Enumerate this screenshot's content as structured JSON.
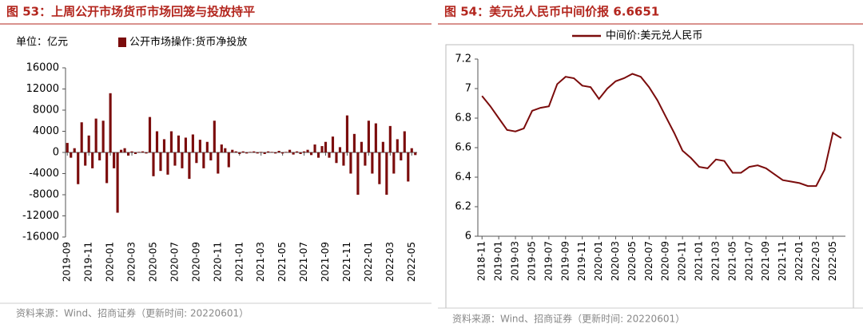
{
  "chart_data": [
    {
      "type": "bar",
      "title": "图 53：上周公开市场货币市场回笼与投放持平",
      "unit_label": "单位：亿元",
      "source": "资料来源：Wind、招商证券（更新时间: 20220601）",
      "categories": [
        "2019-09",
        null,
        null,
        null,
        null,
        null,
        "2019-11",
        null,
        null,
        null,
        null,
        null,
        "2020-01",
        null,
        null,
        null,
        null,
        null,
        "2020-03",
        null,
        null,
        null,
        null,
        null,
        "2020-05",
        null,
        null,
        null,
        null,
        null,
        "2020-07",
        null,
        null,
        null,
        null,
        null,
        "2020-09",
        null,
        null,
        null,
        null,
        null,
        "2020-11",
        null,
        null,
        null,
        null,
        null,
        "2021-01",
        null,
        null,
        null,
        null,
        null,
        "2021-03",
        null,
        null,
        null,
        null,
        null,
        "2021-05",
        null,
        null,
        null,
        null,
        null,
        "2021-07",
        null,
        null,
        null,
        null,
        null,
        "2021-09",
        null,
        null,
        null,
        null,
        null,
        "2021-11",
        null,
        null,
        null,
        null,
        null,
        "2022-01",
        null,
        null,
        null,
        null,
        null,
        "2022-03",
        null,
        null,
        null,
        null,
        null,
        "2022-05",
        null
      ],
      "series": [
        {
          "name": "公开市场操作:货币净投放",
          "color": "#7b0c0c",
          "values": [
            1800,
            -1000,
            800,
            -6000,
            5700,
            -2500,
            3200,
            -3000,
            6400,
            -1500,
            6000,
            -5800,
            11200,
            -3000,
            -11400,
            500,
            800,
            -600,
            200,
            -300,
            100,
            200,
            -200,
            6700,
            -4500,
            4000,
            -3500,
            2500,
            -4200,
            4000,
            -2500,
            3200,
            -3000,
            2800,
            -5000,
            3400,
            -2000,
            2400,
            -3000,
            2000,
            -1500,
            6000,
            -4000,
            1500,
            800,
            -2800,
            500,
            200,
            -300,
            200,
            -200,
            100,
            200,
            -200,
            100,
            -300,
            200,
            100,
            -200,
            300,
            -200,
            100,
            500,
            -400,
            200,
            -300,
            200,
            500,
            -500,
            1500,
            -1000,
            1200,
            2000,
            -1000,
            3000,
            -2000,
            1000,
            -2500,
            7000,
            -4000,
            3500,
            -8000,
            2000,
            -2500,
            6000,
            -4000,
            5500,
            -6000,
            2000,
            -8000,
            5000,
            -4000,
            2500,
            -1500,
            4000,
            -5500,
            800,
            -500
          ]
        }
      ],
      "ylim": [
        -16000,
        16000
      ],
      "yticks": [
        -16000,
        -12000,
        -8000,
        -4000,
        0,
        4000,
        8000,
        12000,
        16000
      ],
      "legend": "top"
    },
    {
      "type": "line",
      "title": "图 54：美元兑人民币中间价报 6.6651",
      "source": "资料来源：Wind、招商证券（更新时间: 20220601）",
      "categories": [
        "2018-11",
        null,
        "2019-01",
        null,
        "2019-03",
        null,
        "2019-05",
        null,
        "2019-07",
        null,
        "2019-09",
        null,
        "2019-11",
        null,
        "2020-01",
        null,
        "2020-03",
        null,
        "2020-05",
        null,
        "2020-07",
        null,
        "2020-09",
        null,
        "2020-11",
        null,
        "2021-01",
        null,
        "2021-03",
        null,
        "2021-05",
        null,
        "2021-07",
        null,
        "2021-09",
        null,
        "2021-11",
        null,
        "2022-01",
        null,
        "2022-03",
        null,
        "2022-05",
        null
      ],
      "series": [
        {
          "name": "中间价:美元兑人民币",
          "color": "#7b0c0c",
          "values": [
            6.95,
            6.88,
            6.8,
            6.72,
            6.71,
            6.73,
            6.85,
            6.87,
            6.88,
            7.03,
            7.08,
            7.07,
            7.02,
            7.01,
            6.93,
            7.0,
            7.05,
            7.07,
            7.1,
            7.08,
            7.01,
            6.92,
            6.81,
            6.7,
            6.58,
            6.53,
            6.47,
            6.46,
            6.52,
            6.51,
            6.43,
            6.43,
            6.47,
            6.48,
            6.46,
            6.42,
            6.38,
            6.37,
            6.36,
            6.34,
            6.34,
            6.45,
            6.7,
            6.6651
          ]
        }
      ],
      "ylim": [
        6,
        7.2
      ],
      "yticks": [
        6,
        6.2,
        6.4,
        6.6,
        6.8,
        7,
        7.2
      ],
      "legend": "top"
    }
  ]
}
